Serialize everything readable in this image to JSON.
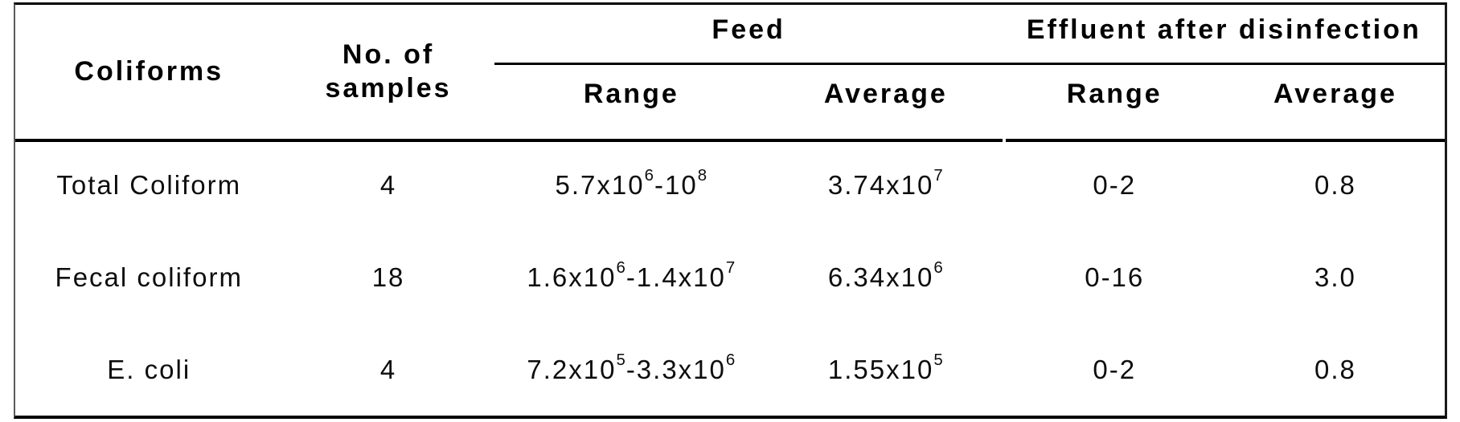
{
  "table": {
    "header": {
      "coliforms": "Coliforms",
      "samples": "No. of\nsamples",
      "feed": {
        "label": "Feed",
        "range": "Range",
        "average": "Average"
      },
      "effluent": {
        "label": "Effluent after disinfection",
        "range": "Range",
        "average": "Average"
      }
    },
    "rows": [
      {
        "coliform": "Total Coliform",
        "samples": "4",
        "feed_range": [
          {
            "text": "5.7x10"
          },
          {
            "sup": "6"
          },
          {
            "text": " -10"
          },
          {
            "sup": "8"
          }
        ],
        "feed_average": [
          {
            "text": "3.74x10"
          },
          {
            "sup": "7"
          }
        ],
        "effluent_range": "0-2",
        "effluent_average": "0.8"
      },
      {
        "coliform": "Fecal coliform",
        "samples": "18",
        "feed_range": [
          {
            "text": "1.6x10"
          },
          {
            "sup": "6"
          },
          {
            "text": "-1.4x10"
          },
          {
            "sup": "7"
          }
        ],
        "feed_average": [
          {
            "text": "6.34x10"
          },
          {
            "sup": "6"
          }
        ],
        "effluent_range": "0-16",
        "effluent_average": "3.0"
      },
      {
        "coliform": "E. coli",
        "samples": "4",
        "feed_range": [
          {
            "text": "7.2x10"
          },
          {
            "sup": "5"
          },
          {
            "text": "-3.3x10"
          },
          {
            "sup": "6"
          }
        ],
        "feed_average": [
          {
            "text": "1.55x10"
          },
          {
            "sup": "5"
          }
        ],
        "effluent_range": "0-2",
        "effluent_average": "0.8"
      }
    ]
  },
  "chart_data": {
    "type": "table",
    "columns": [
      "Coliforms",
      "No. of samples",
      "Feed Range",
      "Feed Average",
      "Effluent after disinfection Range",
      "Effluent after disinfection Average"
    ],
    "rows": [
      [
        "Total Coliform",
        "4",
        "5.7x10^6 -10^8",
        "3.74x10^7",
        "0-2",
        "0.8"
      ],
      [
        "Fecal coliform",
        "18",
        "1.6x10^6-1.4x10^7",
        "6.34x10^6",
        "0-16",
        "3.0"
      ],
      [
        "E. coli",
        "4",
        "7.2x10^5-3.3x10^6",
        "1.55x10^5",
        "0-2",
        "0.8"
      ]
    ]
  },
  "colors": {
    "background": "#ffffff",
    "text": "#0d0d0d",
    "border": "#000000"
  }
}
